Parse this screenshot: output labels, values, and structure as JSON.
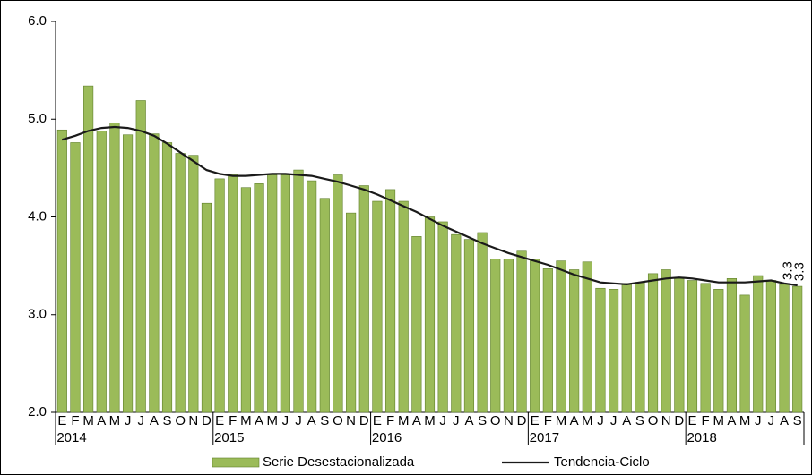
{
  "chart_data": {
    "type": "bar-line",
    "categories": [
      "E",
      "F",
      "M",
      "A",
      "M",
      "J",
      "J",
      "A",
      "S",
      "O",
      "N",
      "D",
      "E",
      "F",
      "M",
      "A",
      "M",
      "J",
      "J",
      "A",
      "S",
      "O",
      "N",
      "D",
      "E",
      "F",
      "M",
      "A",
      "M",
      "J",
      "J",
      "A",
      "S",
      "O",
      "N",
      "D",
      "E",
      "F",
      "M",
      "A",
      "M",
      "J",
      "J",
      "A",
      "S",
      "O",
      "N",
      "D",
      "E",
      "F",
      "M",
      "A",
      "M",
      "J",
      "J",
      "A",
      "S"
    ],
    "years": [
      "2014",
      "2015",
      "2016",
      "2017",
      "2018"
    ],
    "series": [
      {
        "name": "Serie Desestacionalizada",
        "kind": "bar",
        "color": "#9bbb59",
        "values": [
          4.89,
          4.76,
          5.34,
          4.88,
          4.96,
          4.84,
          5.19,
          4.85,
          4.76,
          4.65,
          4.63,
          4.14,
          4.39,
          4.44,
          4.3,
          4.34,
          4.43,
          4.43,
          4.48,
          4.37,
          4.19,
          4.43,
          4.04,
          4.32,
          4.16,
          4.28,
          4.16,
          3.8,
          4.0,
          3.95,
          3.82,
          3.77,
          3.84,
          3.57,
          3.57,
          3.65,
          3.57,
          3.47,
          3.55,
          3.46,
          3.54,
          3.27,
          3.26,
          3.32,
          3.33,
          3.42,
          3.46,
          3.37,
          3.35,
          3.32,
          3.26,
          3.37,
          3.2,
          3.4,
          3.35,
          3.31,
          3.29
        ],
        "value_labels": [
          null,
          null,
          null,
          null,
          null,
          null,
          null,
          null,
          null,
          null,
          null,
          null,
          null,
          null,
          null,
          null,
          null,
          null,
          null,
          null,
          null,
          null,
          null,
          null,
          null,
          null,
          null,
          null,
          null,
          null,
          null,
          null,
          null,
          null,
          null,
          null,
          null,
          null,
          null,
          null,
          null,
          null,
          null,
          null,
          null,
          null,
          null,
          null,
          null,
          null,
          null,
          null,
          null,
          null,
          null,
          null,
          "3.3"
        ]
      },
      {
        "name": "Tendencia-Ciclo",
        "kind": "line",
        "color": "#1a1a1a",
        "values": [
          4.79,
          4.83,
          4.88,
          4.91,
          4.92,
          4.91,
          4.88,
          4.83,
          4.75,
          4.66,
          4.57,
          4.48,
          4.44,
          4.42,
          4.42,
          4.43,
          4.44,
          4.44,
          4.43,
          4.42,
          4.39,
          4.36,
          4.32,
          4.28,
          4.23,
          4.17,
          4.11,
          4.05,
          3.98,
          3.91,
          3.85,
          3.79,
          3.73,
          3.68,
          3.63,
          3.59,
          3.55,
          3.51,
          3.46,
          3.41,
          3.37,
          3.33,
          3.32,
          3.31,
          3.33,
          3.35,
          3.37,
          3.38,
          3.37,
          3.35,
          3.33,
          3.33,
          3.33,
          3.34,
          3.35,
          3.32,
          3.3
        ],
        "value_labels": [
          null,
          null,
          null,
          null,
          null,
          null,
          null,
          null,
          null,
          null,
          null,
          null,
          null,
          null,
          null,
          null,
          null,
          null,
          null,
          null,
          null,
          null,
          null,
          null,
          null,
          null,
          null,
          null,
          null,
          null,
          null,
          null,
          null,
          null,
          null,
          null,
          null,
          null,
          null,
          null,
          null,
          null,
          null,
          null,
          null,
          null,
          null,
          null,
          null,
          null,
          null,
          null,
          null,
          null,
          null,
          null,
          "3.3"
        ]
      }
    ],
    "ylim": [
      2,
      6
    ],
    "yticks": [
      {
        "value": 2,
        "label": "2.0"
      },
      {
        "value": 3,
        "label": "3.0"
      },
      {
        "value": 4,
        "label": "4.0"
      },
      {
        "value": 5,
        "label": "5.0"
      },
      {
        "value": 6,
        "label": "6.0"
      }
    ]
  }
}
